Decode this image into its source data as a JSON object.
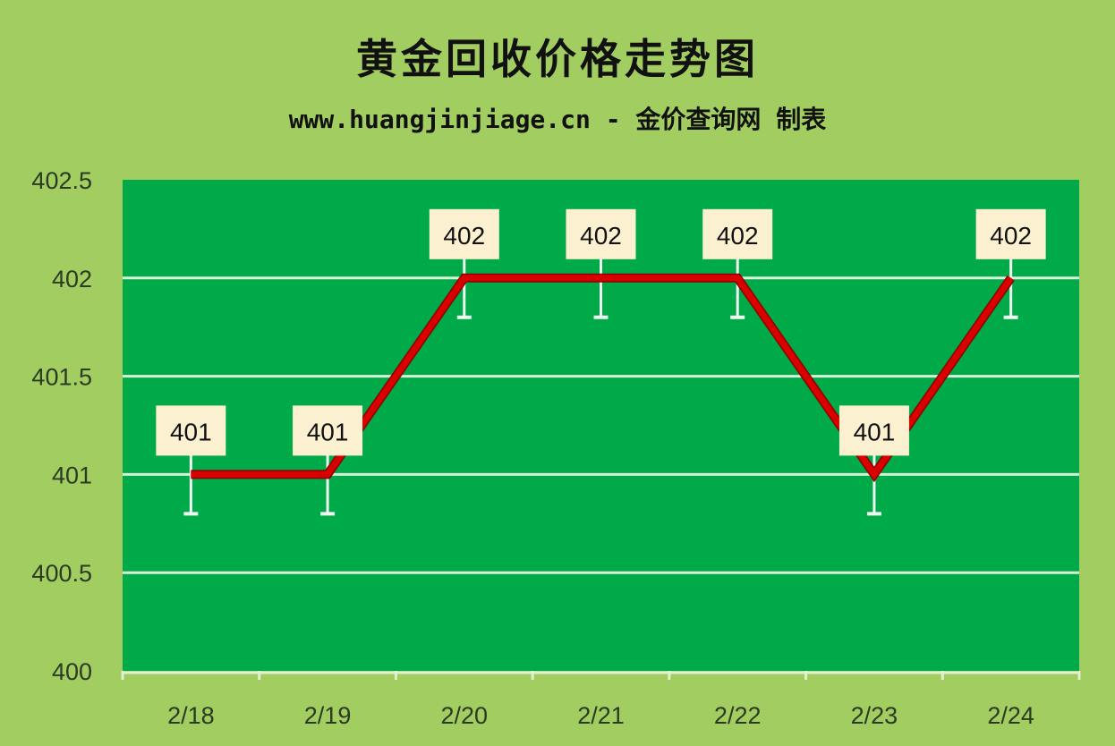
{
  "chart_data": {
    "type": "line",
    "title": "黄金回收价格走势图",
    "subtitle": "www.huangjinjiage.cn - 金价查询网 制表",
    "categories": [
      "2/18",
      "2/19",
      "2/20",
      "2/21",
      "2/22",
      "2/23",
      "2/24"
    ],
    "values": [
      401,
      401,
      402,
      402,
      402,
      401,
      402
    ],
    "data_labels": [
      "401",
      "401",
      "402",
      "402",
      "402",
      "401",
      "402"
    ],
    "error_bar": 0.2,
    "ylim": [
      400,
      402.5
    ],
    "yticks": [
      "400",
      "400.5",
      "401",
      "401.5",
      "402",
      "402.5"
    ],
    "grid": true,
    "legend": "none",
    "colors": {
      "background": "#a2cd60",
      "plot": "#00aa48",
      "line": "#d90000",
      "grid": "#d8f2d8",
      "label_box": "#fbf0d0"
    }
  }
}
